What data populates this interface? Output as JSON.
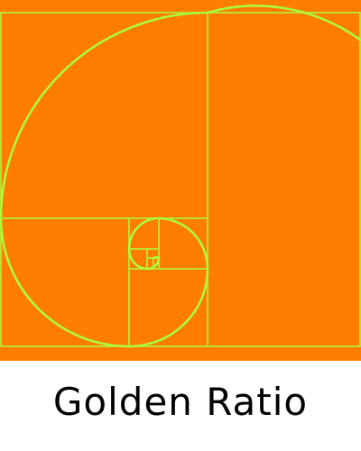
{
  "caption": {
    "text": "Golden Ratio"
  },
  "colors": {
    "background": "#FF7D00",
    "lines": "#A8FF3A",
    "page": "#FFFFFF",
    "caption_text": "#000000"
  },
  "diagram": {
    "kind": "fibonacci-spiral",
    "rectangle_count": 7,
    "squares_visible": [
      "largest",
      "large",
      "medium",
      "small",
      "smaller",
      "tiny",
      "tiniest"
    ]
  }
}
